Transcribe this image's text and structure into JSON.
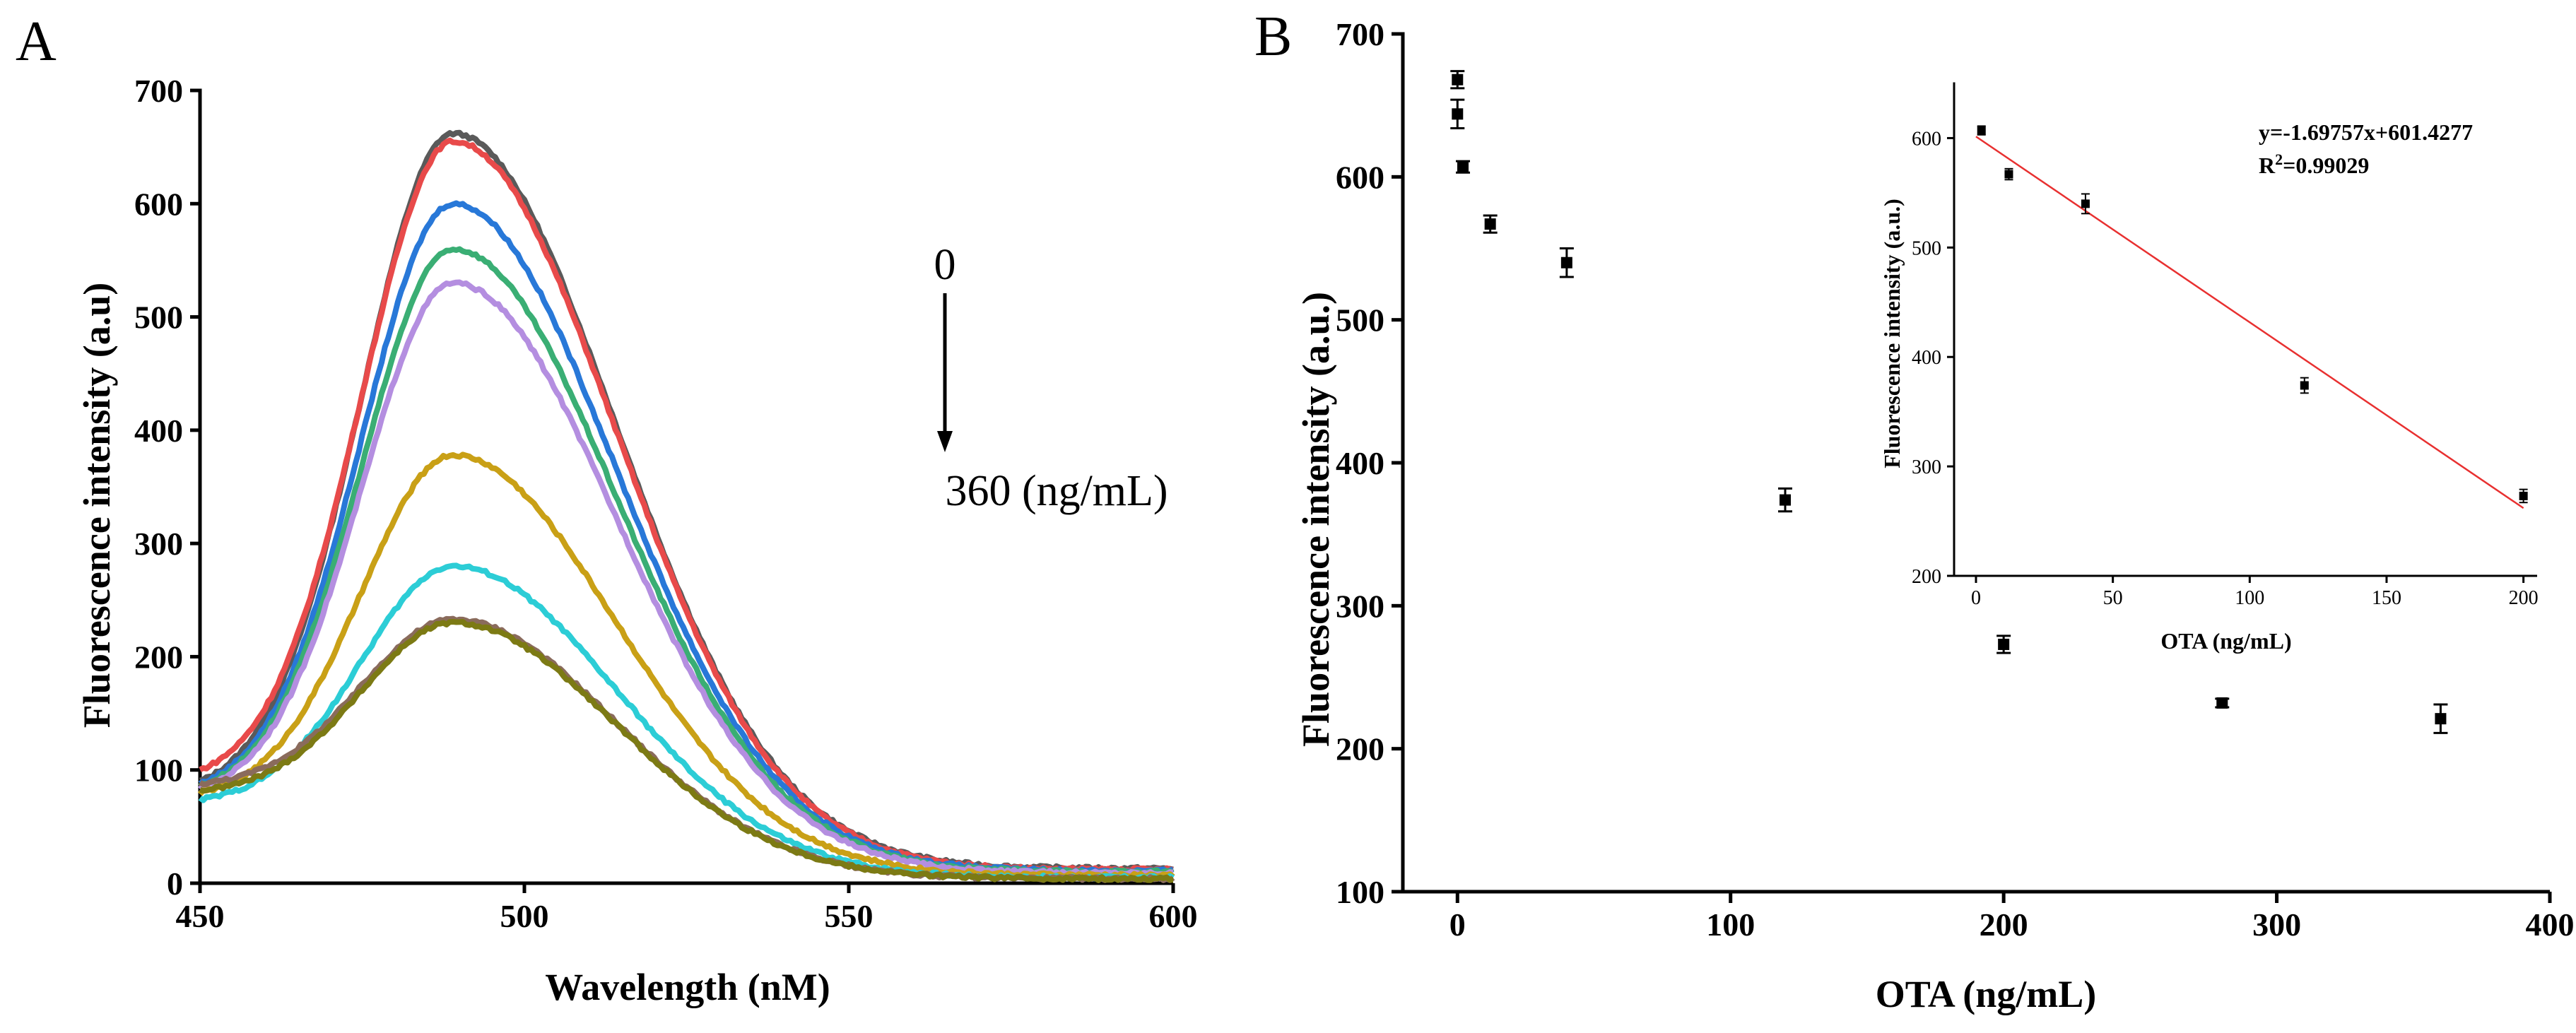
{
  "panels": {
    "a_label": "A",
    "b_label": "B"
  },
  "chart_data": [
    {
      "type": "line",
      "panel": "A",
      "xlabel": "Wavelength (nM)",
      "ylabel": "Fluorescence intensity (a.u)",
      "xlim": [
        450,
        600
      ],
      "ylim": [
        0,
        700
      ],
      "x_ticks": [
        "450",
        "500",
        "550",
        "600"
      ],
      "y_ticks": [
        "0",
        "100",
        "200",
        "300",
        "400",
        "500",
        "600",
        "700"
      ],
      "grid": false,
      "legend": "none",
      "annotation": {
        "top_text": "0",
        "bottom_text": "360 (ng/mL)"
      },
      "peak_wavelength": 489,
      "series": [
        {
          "color": "#5a5a5a",
          "start": 90,
          "peak": 662,
          "end": 13
        },
        {
          "color": "#e84a4a",
          "start": 100,
          "peak": 655,
          "end": 12
        },
        {
          "color": "#2878d8",
          "start": 88,
          "peak": 600,
          "end": 11
        },
        {
          "color": "#3aae74",
          "start": 86,
          "peak": 560,
          "end": 10
        },
        {
          "color": "#b48ee0",
          "start": 84,
          "peak": 530,
          "end": 9
        },
        {
          "color": "#c9a016",
          "start": 80,
          "peak": 378,
          "end": 7
        },
        {
          "color": "#2ccdd6",
          "start": 74,
          "peak": 280,
          "end": 5
        },
        {
          "color": "#8a6b5c",
          "start": 88,
          "peak": 233,
          "end": 4
        },
        {
          "color": "#7c7a14",
          "start": 82,
          "peak": 230,
          "end": 4
        }
      ]
    },
    {
      "type": "scatter",
      "panel": "B",
      "xlabel": "OTA (ng/mL)",
      "ylabel": "Fluorescence intensity (a.u.)",
      "xlim": [
        -20,
        400
      ],
      "ylim": [
        100,
        700
      ],
      "x_ticks": [
        "0",
        "100",
        "200",
        "300",
        "400"
      ],
      "y_ticks": [
        "100",
        "200",
        "300",
        "400",
        "500",
        "600",
        "700"
      ],
      "grid": false,
      "legend": "none",
      "points": [
        {
          "x": 0,
          "y": 668,
          "err": 6
        },
        {
          "x": 0,
          "y": 644,
          "err": 10
        },
        {
          "x": 2,
          "y": 607,
          "err": 4
        },
        {
          "x": 12,
          "y": 567,
          "err": 6
        },
        {
          "x": 40,
          "y": 540,
          "err": 10
        },
        {
          "x": 120,
          "y": 374,
          "err": 8
        },
        {
          "x": 200,
          "y": 273,
          "err": 6
        },
        {
          "x": 280,
          "y": 232,
          "err": 3
        },
        {
          "x": 360,
          "y": 221,
          "err": 10
        }
      ]
    },
    {
      "type": "scatter",
      "panel": "B-inset",
      "xlabel": "OTA (ng/mL)",
      "ylabel": "Fluorescence intensity (a.u.)",
      "xlim": [
        -8,
        205
      ],
      "ylim": [
        200,
        650
      ],
      "x_ticks": [
        "0",
        "50",
        "100",
        "150",
        "200"
      ],
      "y_ticks": [
        "200",
        "300",
        "400",
        "500",
        "600"
      ],
      "grid": false,
      "legend": "none",
      "fit": {
        "slope": -1.69757,
        "intercept": 601.4277,
        "x_range": [
          0,
          200
        ],
        "color": "#e83030",
        "equation": "y=-1.69757x+601.4277",
        "r2_prefix": "R",
        "r2_sup": "2",
        "r2_value": "=0.99029"
      },
      "points": [
        {
          "x": 2,
          "y": 607,
          "err": 4
        },
        {
          "x": 12,
          "y": 567,
          "err": 5
        },
        {
          "x": 40,
          "y": 540,
          "err": 9
        },
        {
          "x": 120,
          "y": 374,
          "err": 7
        },
        {
          "x": 200,
          "y": 273,
          "err": 6
        }
      ]
    }
  ]
}
